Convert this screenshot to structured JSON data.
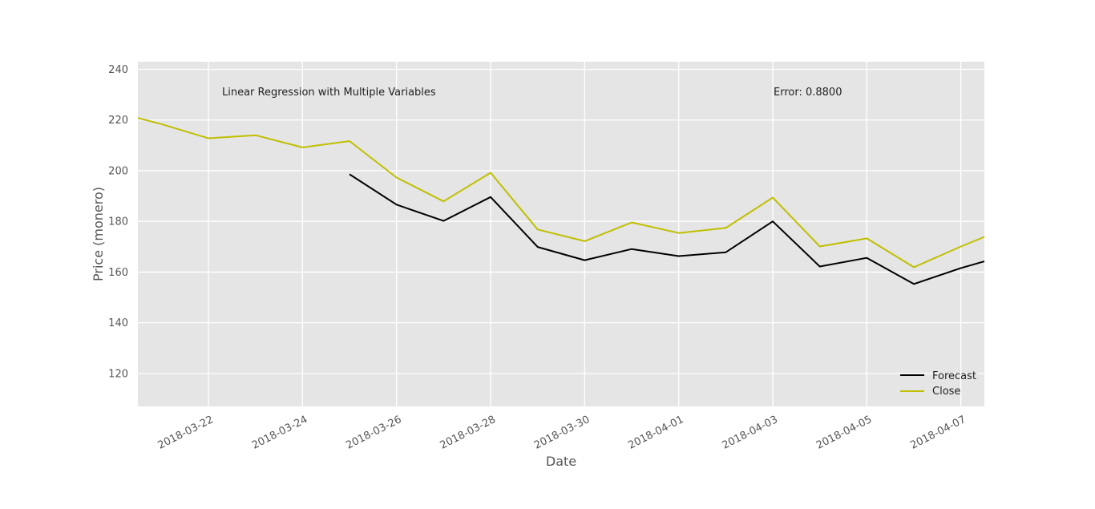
{
  "chart_data": {
    "type": "line",
    "title": "",
    "xlabel": "Date",
    "ylabel": "Price (monero)",
    "x": [
      "2018-03-21",
      "2018-03-22",
      "2018-03-23",
      "2018-03-24",
      "2018-03-25",
      "2018-03-26",
      "2018-03-27",
      "2018-03-28",
      "2018-03-29",
      "2018-03-30",
      "2018-03-31",
      "2018-04-01",
      "2018-04-02",
      "2018-04-03",
      "2018-04-04",
      "2018-04-05",
      "2018-04-06",
      "2018-04-07",
      "2018-04-07T12:00"
    ],
    "x_range": [
      "2018-03-20T12:00",
      "2018-04-07T12:00"
    ],
    "ylim": [
      107,
      243
    ],
    "yticks": [
      120,
      140,
      160,
      180,
      200,
      220,
      240
    ],
    "xticks": [
      "2018-03-22",
      "2018-03-24",
      "2018-03-26",
      "2018-03-28",
      "2018-03-30",
      "2018-04-01",
      "2018-04-03",
      "2018-04-05",
      "2018-04-07"
    ],
    "series": [
      {
        "name": "Forecast",
        "color": "#000000",
        "points": [
          [
            "2018-03-25",
            198.6
          ],
          [
            "2018-03-26",
            186.6
          ],
          [
            "2018-03-27",
            180.2
          ],
          [
            "2018-03-28",
            189.6
          ],
          [
            "2018-03-29",
            169.9
          ],
          [
            "2018-03-30",
            164.7
          ],
          [
            "2018-03-31",
            169.1
          ],
          [
            "2018-04-01",
            166.3
          ],
          [
            "2018-04-02",
            167.8
          ],
          [
            "2018-04-03",
            180.0
          ],
          [
            "2018-04-04",
            162.2
          ],
          [
            "2018-04-05",
            165.6
          ],
          [
            "2018-04-06",
            155.3
          ],
          [
            "2018-04-07",
            161.6
          ],
          [
            "2018-04-07T12:00",
            164.2
          ]
        ]
      },
      {
        "name": "Close",
        "color": "#bfbf00",
        "points": [
          [
            "2018-03-20T12:00",
            220.8
          ],
          [
            "2018-03-21",
            218.4
          ],
          [
            "2018-03-22",
            212.8
          ],
          [
            "2018-03-23",
            214.0
          ],
          [
            "2018-03-24",
            209.2
          ],
          [
            "2018-03-25",
            211.7
          ],
          [
            "2018-03-26",
            197.3
          ],
          [
            "2018-03-27",
            187.9
          ],
          [
            "2018-03-28",
            199.2
          ],
          [
            "2018-03-29",
            176.8
          ],
          [
            "2018-03-30",
            172.2
          ],
          [
            "2018-03-31",
            179.6
          ],
          [
            "2018-04-01",
            175.4
          ],
          [
            "2018-04-02",
            177.4
          ],
          [
            "2018-04-03",
            189.4
          ],
          [
            "2018-04-04",
            170.1
          ],
          [
            "2018-04-05",
            173.3
          ],
          [
            "2018-04-06",
            161.9
          ],
          [
            "2018-04-07",
            170.1
          ],
          [
            "2018-04-07T12:00",
            173.9
          ]
        ]
      }
    ],
    "annotations": [
      {
        "text": "Linear Regression with Multiple Variables",
        "position": "top-left"
      },
      {
        "text": "Error: 0.8800",
        "position": "top-right"
      }
    ],
    "legend": {
      "placement": "lower-right",
      "entries": [
        "Forecast",
        "Close"
      ]
    },
    "grid": true,
    "style": {
      "plot_background": "#e5e5e5",
      "grid_color": "#ffffff"
    }
  }
}
